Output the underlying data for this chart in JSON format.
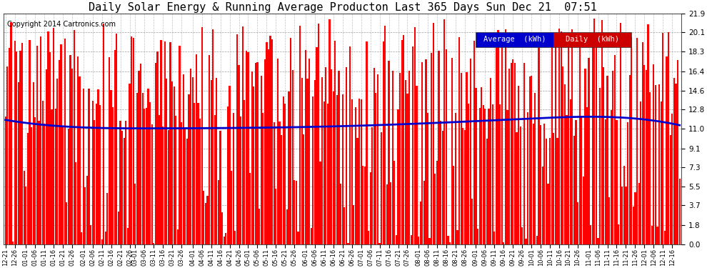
{
  "title": "Daily Solar Energy & Running Average Producton Last 365 Days Sun Dec 21  07:51",
  "copyright": "Copyright 2014 Cartronics.com",
  "ylabel_right_ticks": [
    0.0,
    1.8,
    3.7,
    5.5,
    7.3,
    9.1,
    11.0,
    12.8,
    14.6,
    16.4,
    18.3,
    20.1,
    21.9
  ],
  "ylim": [
    0,
    21.9
  ],
  "bar_color": "#ff0000",
  "avg_line_color": "#0000cc",
  "bg_color": "#ffffff",
  "grid_color": "#aaaaaa",
  "title_fontsize": 11,
  "legend_labels": [
    "Average  (kWh)",
    "Daily  (kWh)"
  ],
  "legend_bg_avg": "#0000cc",
  "legend_bg_daily": "#cc0000",
  "n_days": 365,
  "avg_control_points_x": [
    0,
    30,
    80,
    130,
    180,
    230,
    280,
    320,
    364
  ],
  "avg_control_points_y": [
    11.8,
    11.2,
    11.0,
    11.05,
    11.2,
    11.5,
    11.9,
    12.1,
    11.3
  ]
}
